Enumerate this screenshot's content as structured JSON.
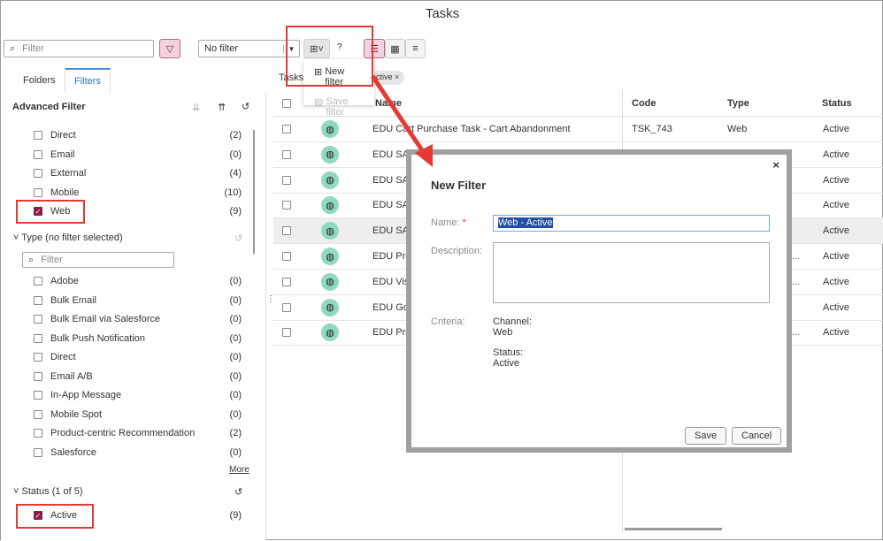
{
  "title": "Tasks",
  "toolbar": {
    "filter_placeholder": "Filter",
    "filter_select": "No filter",
    "menu": {
      "new_filter": "New filter",
      "save_filter": "Save filter"
    }
  },
  "tabs": [
    "Folders",
    "Filters"
  ],
  "sidebar": {
    "header": "Advanced Filter",
    "channels": [
      {
        "label": "Direct",
        "count": "(2)",
        "checked": false
      },
      {
        "label": "Email",
        "count": "(0)",
        "checked": false
      },
      {
        "label": "External",
        "count": "(4)",
        "checked": false
      },
      {
        "label": "Mobile",
        "count": "(10)",
        "checked": false
      },
      {
        "label": "Web",
        "count": "(9)",
        "checked": true
      }
    ],
    "type_header": "Type (no filter selected)",
    "type_filter_placeholder": "Filter",
    "types": [
      {
        "label": "Adobe",
        "count": "(0)"
      },
      {
        "label": "Bulk Email",
        "count": "(0)"
      },
      {
        "label": "Bulk Email via Salesforce",
        "count": "(0)"
      },
      {
        "label": "Bulk Push Notification",
        "count": "(0)"
      },
      {
        "label": "Direct",
        "count": "(0)"
      },
      {
        "label": "Email A/B",
        "count": "(0)"
      },
      {
        "label": "In-App Message",
        "count": "(0)"
      },
      {
        "label": "Mobile Spot",
        "count": "(0)"
      },
      {
        "label": "Product-centric Recommendation",
        "count": "(2)"
      },
      {
        "label": "Salesforce",
        "count": "(0)"
      }
    ],
    "more": "More",
    "status_header": "Status (1 of 5)",
    "status": [
      {
        "label": "Active",
        "count": "(9)",
        "checked": true
      }
    ]
  },
  "main": {
    "label": "Tasks",
    "chip": "ctive",
    "columns": [
      "Name",
      "Code",
      "Type",
      "Status"
    ],
    "rows": [
      {
        "name": "EDU Cart Purchase Task - Cart Abandonment",
        "code": "TSK_743",
        "type": "Web",
        "status": "Active",
        "trunc": ""
      },
      {
        "name": "EDU SAS",
        "code": "",
        "type": "",
        "status": "Active",
        "trunc": ""
      },
      {
        "name": "EDU SAS",
        "code": "",
        "type": "",
        "status": "Active",
        "trunc": ""
      },
      {
        "name": "EDU SAS",
        "code": "",
        "type": "",
        "status": "Active",
        "trunc": ""
      },
      {
        "name": "EDU SAS",
        "code": "",
        "type": "",
        "status": "Active",
        "trunc": ""
      },
      {
        "name": "EDU Pro",
        "code": "",
        "type": "",
        "status": "Active",
        "trunc": "..."
      },
      {
        "name": "EDU Vis",
        "code": "",
        "type": "",
        "status": "Active",
        "trunc": "..."
      },
      {
        "name": "EDU Go",
        "code": "",
        "type": "",
        "status": "Active",
        "trunc": ""
      },
      {
        "name": "EDU Pro",
        "code": "",
        "type": "",
        "status": "Active",
        "trunc": "..."
      }
    ]
  },
  "dialog": {
    "title": "New Filter",
    "name_label": "Name:",
    "required": "*",
    "name_value": "Web - Active",
    "description_label": "Description:",
    "criteria_label": "Criteria:",
    "criteria": [
      {
        "key": "Channel:",
        "value": "Web"
      },
      {
        "key": "Status:",
        "value": "Active"
      }
    ],
    "save": "Save",
    "cancel": "Cancel",
    "close": "×"
  },
  "colors": {
    "accent": "#8b1e4a",
    "annotation": "#e53935",
    "globe": "#8fd9bf"
  }
}
